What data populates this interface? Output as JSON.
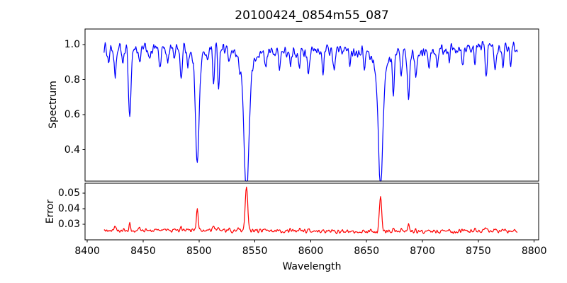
{
  "title": "20100424_0854m55_087",
  "background": "#ffffff",
  "frame_color": "#000000",
  "chart_data": [
    {
      "type": "line",
      "panel": "top",
      "series_name": "spectrum",
      "title": "20100424_0854m55_087",
      "ylabel": "Spectrum",
      "color": "#0000ff",
      "x_range": [
        8415,
        8785
      ],
      "x_step": 0.5,
      "xlim": [
        8398,
        8804
      ],
      "ylim": [
        0.22,
        1.09
      ],
      "x_ticks": [
        8400,
        8450,
        8500,
        8550,
        8600,
        8650,
        8700,
        8750,
        8800
      ],
      "y_ticks": [
        0.4,
        0.6,
        0.8,
        1.0
      ],
      "grid": false,
      "legend": false,
      "continuum_level": 0.972,
      "noise_amplitude": 0.016,
      "line_columns": [
        "wavelength",
        "min_flux",
        "sigma_angstrom",
        "error_peak_height",
        "broad_wings"
      ],
      "absorption_lines": [
        [
          8419,
          0.9,
          0.7,
          0.001,
          0
        ],
        [
          8425,
          0.79,
          0.9,
          0.003,
          0
        ],
        [
          8432,
          0.88,
          0.7,
          0.001,
          0
        ],
        [
          8438,
          0.59,
          1.1,
          0.005,
          0
        ],
        [
          8447,
          0.88,
          0.8,
          0.0012,
          0
        ],
        [
          8456,
          0.9,
          0.7,
          0.001,
          0
        ],
        [
          8465,
          0.85,
          0.9,
          0.0015,
          0
        ],
        [
          8472,
          0.89,
          0.7,
          0.001,
          0
        ],
        [
          8478,
          0.91,
          0.7,
          0.001,
          0
        ],
        [
          8484,
          0.8,
          0.9,
          0.002,
          0
        ],
        [
          8490,
          0.89,
          0.7,
          0.001,
          0
        ],
        [
          8498.5,
          0.42,
          1.5,
          0.014,
          1
        ],
        [
          8508,
          0.91,
          0.7,
          0.001,
          0
        ],
        [
          8513,
          0.77,
          0.8,
          0.0025,
          0
        ],
        [
          8517.5,
          0.76,
          0.8,
          0.0025,
          0
        ],
        [
          8527,
          0.88,
          0.8,
          0.001,
          0
        ],
        [
          8536,
          0.92,
          0.7,
          0.001,
          0
        ],
        [
          8542.5,
          0.27,
          2.1,
          0.027,
          1
        ],
        [
          8560,
          0.88,
          0.8,
          0.0012,
          0
        ],
        [
          8572,
          0.9,
          0.7,
          0.001,
          0
        ],
        [
          8582,
          0.88,
          0.8,
          0.001,
          0
        ],
        [
          8590,
          0.91,
          0.7,
          0.001,
          0
        ],
        [
          8598,
          0.86,
          0.8,
          0.0012,
          0
        ],
        [
          8611,
          0.87,
          0.9,
          0.0012,
          0
        ],
        [
          8621,
          0.86,
          0.9,
          0.0012,
          0
        ],
        [
          8635,
          0.9,
          0.8,
          0.001,
          0
        ],
        [
          8648,
          0.89,
          0.8,
          0.001,
          0
        ],
        [
          8662.5,
          0.3,
          1.9,
          0.0225,
          1
        ],
        [
          8674,
          0.74,
          0.9,
          0.003,
          0
        ],
        [
          8681,
          0.82,
          0.8,
          0.002,
          0
        ],
        [
          8687.5,
          0.7,
          1.0,
          0.0052,
          0
        ],
        [
          8694,
          0.84,
          0.8,
          0.0015,
          0
        ],
        [
          8706,
          0.88,
          0.8,
          0.001,
          0
        ],
        [
          8713,
          0.87,
          0.8,
          0.001,
          0
        ],
        [
          8724,
          0.9,
          0.7,
          0.001,
          0
        ],
        [
          8736,
          0.88,
          0.8,
          0.001,
          0
        ],
        [
          8747,
          0.86,
          0.8,
          0.0012,
          0
        ],
        [
          8757,
          0.83,
          0.9,
          0.0018,
          0
        ],
        [
          8765,
          0.86,
          0.8,
          0.0012,
          0
        ],
        [
          8772,
          0.88,
          0.7,
          0.001,
          0
        ],
        [
          8779,
          0.9,
          0.7,
          0.001,
          0
        ]
      ],
      "notes": "Noisy stellar spectrum normalized near 1.0; strongest absorption dips reach 0.42 (~8498), 0.27 (~8542), 0.30 (~8662), 0.59 (~8438)."
    },
    {
      "type": "line",
      "panel": "bottom",
      "series_name": "error",
      "xlabel": "Wavelength",
      "ylabel": "Error",
      "color": "#ff0000",
      "x_range": [
        8415,
        8785
      ],
      "x_step": 0.5,
      "xlim": [
        8398,
        8804
      ],
      "ylim": [
        0.02,
        0.0564
      ],
      "x_ticks": [
        8400,
        8450,
        8500,
        8550,
        8600,
        8650,
        8700,
        8750,
        8800
      ],
      "y_ticks": [
        0.03,
        0.04,
        0.05
      ],
      "grid": false,
      "legend": false,
      "baseline": 0.0256,
      "noise_amplitude": 0.0006,
      "peaks_follow_absorption_lines": true,
      "notes": "Error baseline ~0.026 with spikes to ~0.053 (~8542), ~0.048 (~8662), ~0.040 (~8498)."
    }
  ]
}
